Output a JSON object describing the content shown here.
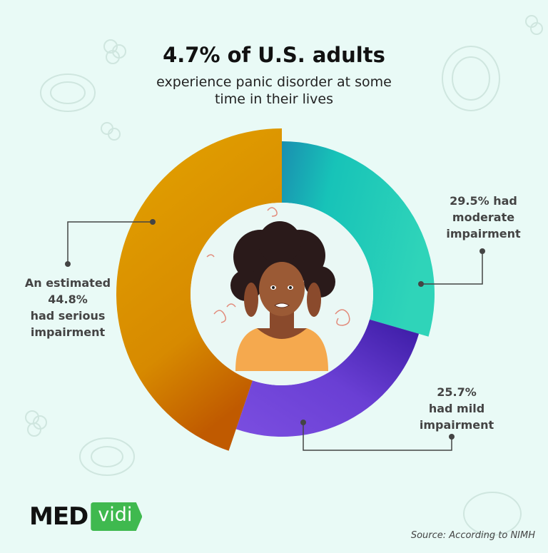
{
  "header": {
    "title": "4.7% of U.S. adults",
    "subtitle_line1": "experience panic disorder at some",
    "subtitle_line2": "time in their lives"
  },
  "chart_data": {
    "type": "pie",
    "variant": "donut",
    "categories": [
      "serious impairment",
      "moderate impairment",
      "mild impairment"
    ],
    "values": [
      44.8,
      29.5,
      25.7
    ],
    "colors": [
      "#e0a000",
      "#1ec9b7",
      "#6a3fd4"
    ],
    "annotations": {
      "serious": [
        "An estimated",
        "44.8%",
        "had serious",
        "impairment"
      ],
      "moderate": [
        "29.5% had",
        "moderate",
        "impairment"
      ],
      "mild": [
        "25.7%",
        "had mild",
        "impairment"
      ]
    }
  },
  "logo": {
    "part1": "MED",
    "part2": "vidi"
  },
  "source": "Source: According to NIMH",
  "illustration": "woman-covering-ears-illustration"
}
